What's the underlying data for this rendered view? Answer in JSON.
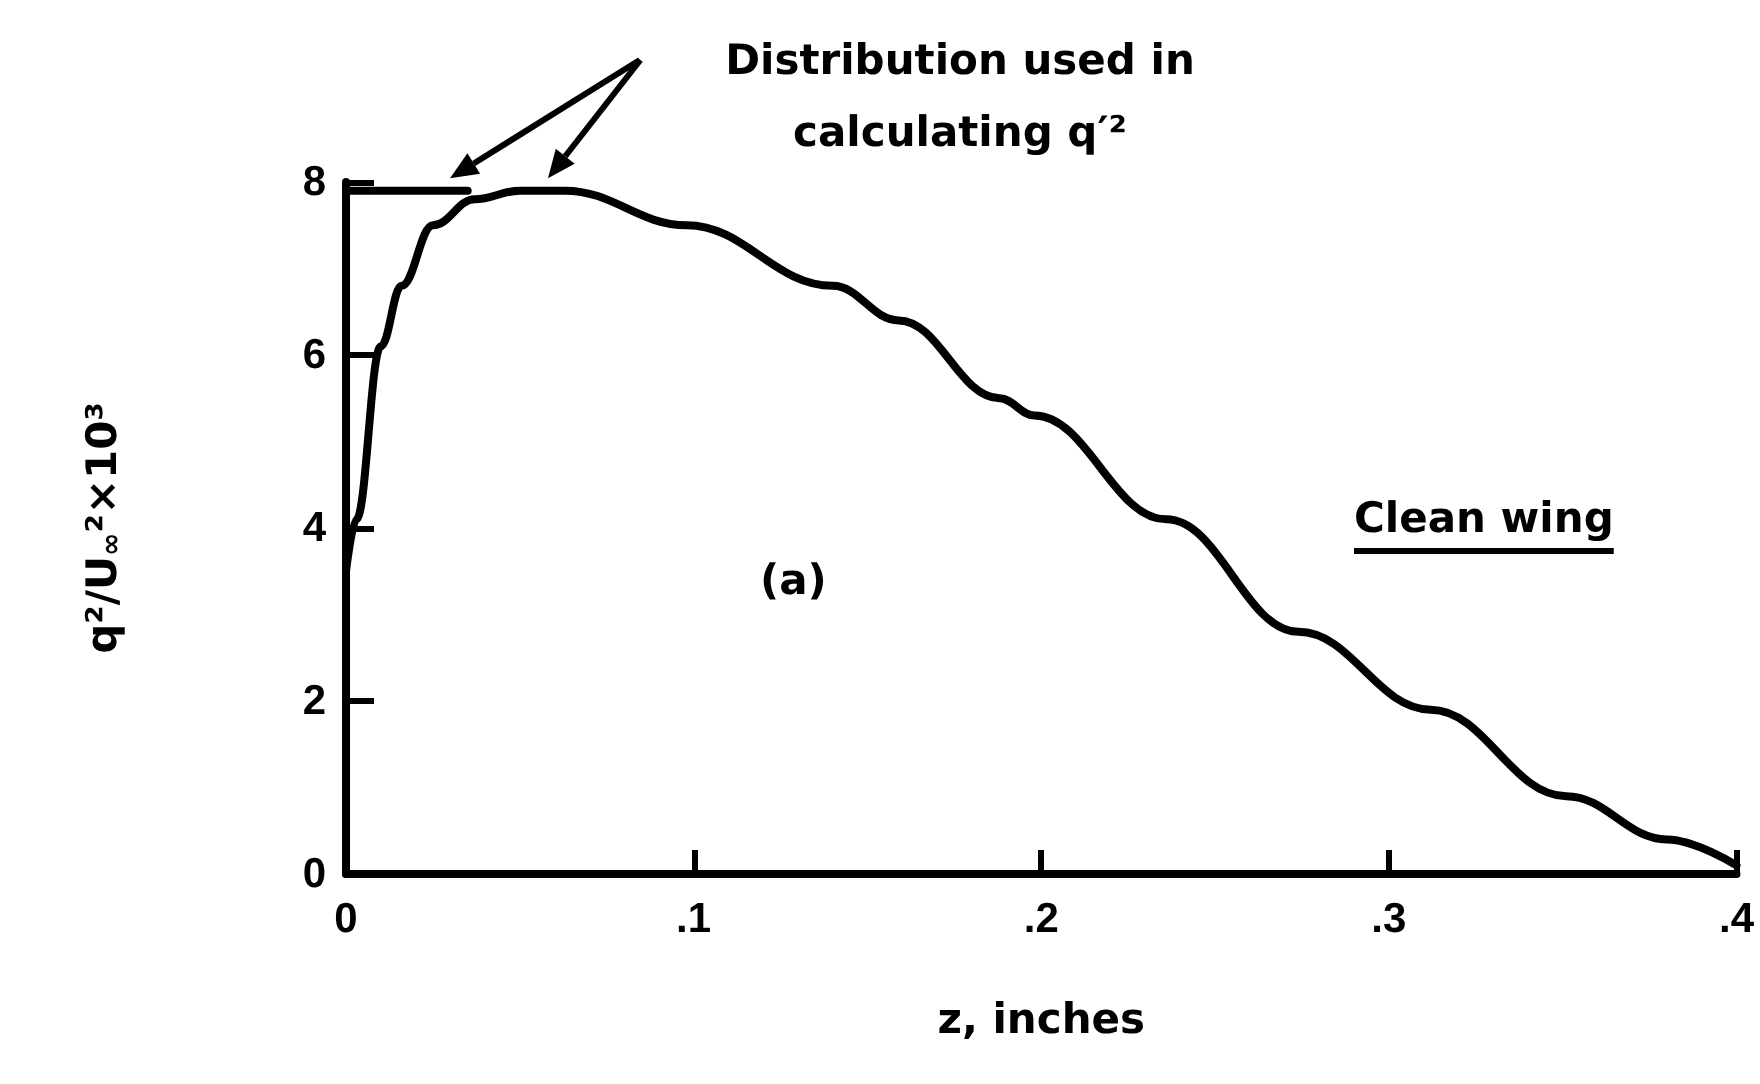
{
  "chart_data": {
    "type": "line",
    "xlabel": "z, inches",
    "ylabel": "q²/U$_{∞}$²×10³",
    "annotations": [
      "Distribution used in calculating q′²",
      "(a)",
      "Clean wing"
    ],
    "xlim": [
      0,
      0.4
    ],
    "xticks": [
      {
        "value": 0,
        "label": "0"
      },
      {
        "value": 0.1,
        "label": ".1"
      },
      {
        "value": 0.2,
        "label": ".2"
      },
      {
        "value": 0.3,
        "label": ".3"
      },
      {
        "value": 0.4,
        "label": ".4"
      }
    ],
    "ylim": [
      0,
      8
    ],
    "yticks": [
      0,
      2,
      4,
      6,
      8
    ],
    "grid": false,
    "marker": "none",
    "line_style": "solid",
    "series": [
      {
        "color": "#000000",
        "x": [
          0,
          0.003,
          0.01,
          0.016,
          0.025,
          0.037,
          0.05,
          0.063,
          0.098,
          0.14,
          0.159,
          0.188,
          0.198,
          0.236,
          0.274,
          0.312,
          0.351,
          0.38,
          0.4
        ],
        "values": [
          3.5,
          4.1,
          6.1,
          6.8,
          7.5,
          7.8,
          7.9,
          7.9,
          7.5,
          6.8,
          6.4,
          5.5,
          5.3,
          4.1,
          2.8,
          1.9,
          0.9,
          0.4,
          0.1
        ]
      },
      {
        "color": "#000000",
        "x": [
          0,
          0.035
        ],
        "values": [
          7.9,
          7.9
        ]
      }
    ]
  }
}
